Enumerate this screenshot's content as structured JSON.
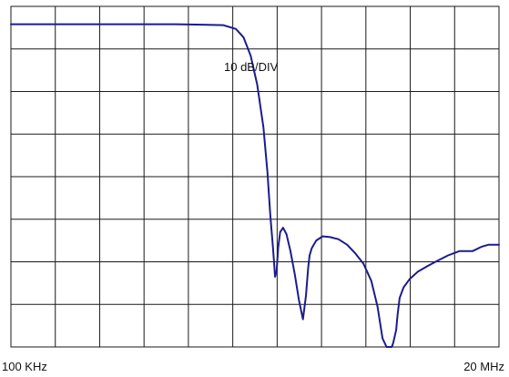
{
  "chart_data": {
    "type": "line",
    "annotation": "10 dB/DIV",
    "x_tick_labels": [
      "100 KHz",
      "20 MHz"
    ],
    "xlabel": "",
    "ylabel": "",
    "x_scale": "log",
    "xlim_hz": [
      100000,
      20000000
    ],
    "y_unit": "dB",
    "ylim": [
      -80,
      0
    ],
    "grid": true,
    "grid_divisions": {
      "x": 11,
      "y": 8
    },
    "series": [
      {
        "color": "#1c1c8c",
        "x": [
          100000,
          200000,
          400000,
          600000,
          800000,
          1000000,
          1150000,
          1250000,
          1350000,
          1450000,
          1550000,
          1620000,
          1670000,
          1720000,
          1760000,
          1790000,
          1820000,
          1860000,
          1920000,
          1990000,
          2080000,
          2180000,
          2280000,
          2380000,
          2460000,
          2520000,
          2560000,
          2620000,
          2750000,
          2950000,
          3200000,
          3500000,
          3850000,
          4200000,
          4600000,
          5000000,
          5350000,
          5650000,
          5900000,
          6100000,
          6250000,
          6350000,
          6450000,
          6550000,
          6650000,
          6800000,
          7100000,
          7600000,
          8300000,
          9200000,
          10200000,
          11500000,
          13000000,
          15000000,
          16500000,
          17800000,
          19000000,
          20000000
        ],
        "values": [
          -4.2,
          -4.2,
          -4.2,
          -4.2,
          -4.3,
          -4.4,
          -5.3,
          -7.3,
          -11.6,
          -18.4,
          -28.4,
          -38.9,
          -48.9,
          -56.7,
          -63.5,
          -62.2,
          -56.7,
          -53.0,
          -52.0,
          -53.5,
          -57.5,
          -63.0,
          -69.0,
          -73.5,
          -68.0,
          -61.5,
          -58.5,
          -56.8,
          -55.0,
          -54.0,
          -54.2,
          -54.7,
          -56.0,
          -58.0,
          -60.5,
          -64.5,
          -70.5,
          -78.0,
          -84.0,
          -84.0,
          -82.5,
          -79.0,
          -77.5,
          -76.0,
          -72.5,
          -68.5,
          -66.0,
          -64.0,
          -62.3,
          -61.0,
          -59.8,
          -58.5,
          -57.5,
          -57.5,
          -56.5,
          -56.0,
          -56.0,
          -56.0
        ]
      }
    ]
  }
}
